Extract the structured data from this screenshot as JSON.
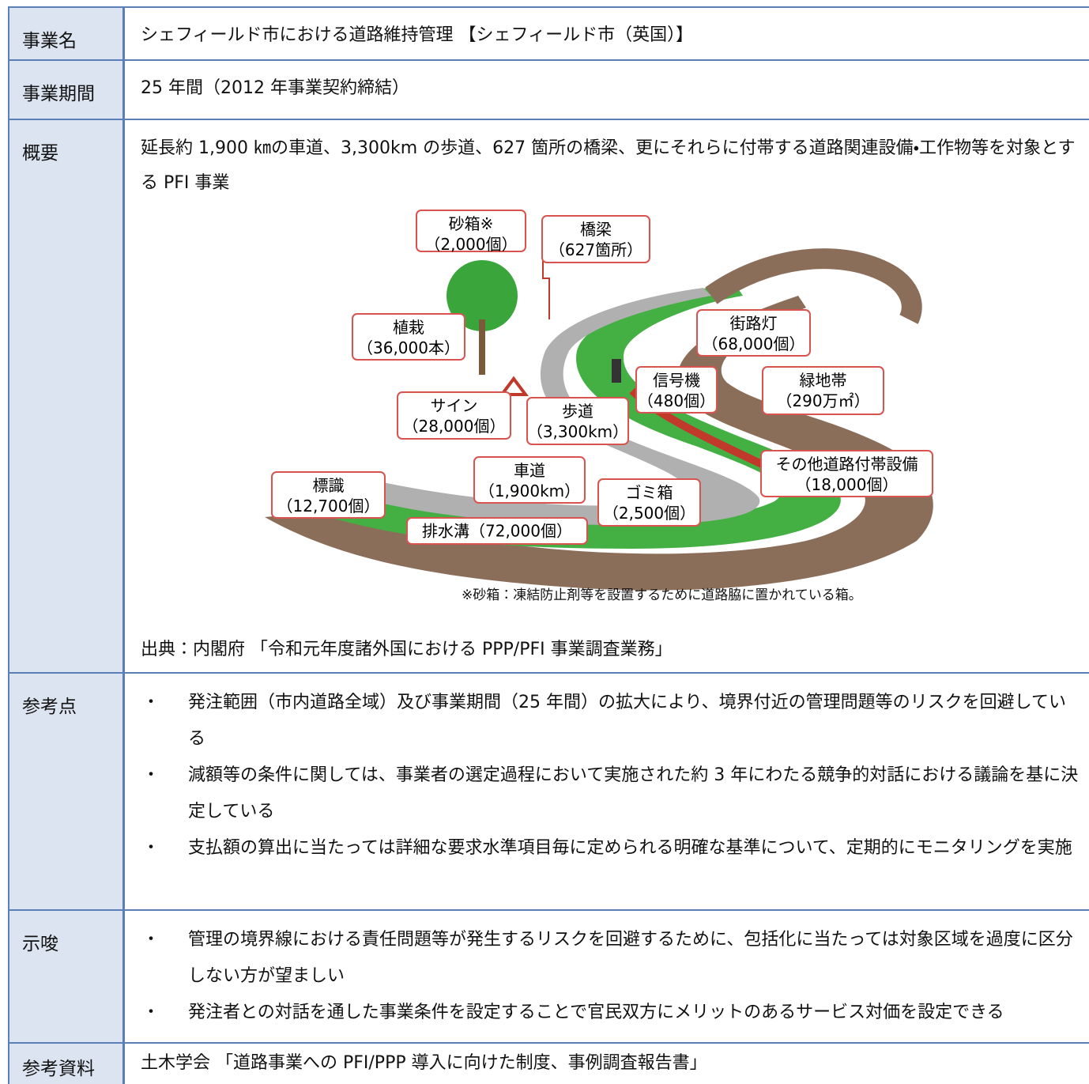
{
  "bullet": "・",
  "rows": [
    {
      "label": "事業名",
      "text": "シェフィールド市における道路維持管理 【シェフィールド市（英国）】"
    },
    {
      "label": "事業期間",
      "text": "25 年間（2012 年事業契約締結）"
    },
    {
      "label": "概要",
      "text": "延長約 1,900 ㎞の車道、3,300km の歩道、627 箇所の橋梁、更にそれらに付帯する道路関連設備・工作物等を対象とする PFI 事業",
      "figure": {
        "labels": [
          {
            "name": "砂箱※",
            "count": "（2,000個）"
          },
          {
            "name": "橋梁",
            "count": "（627箇所）"
          },
          {
            "name": "植栽",
            "count": "（36,000本）"
          },
          {
            "name": "街路灯",
            "count": "（68,000個）"
          },
          {
            "name": "信号機",
            "count": "（480個）"
          },
          {
            "name": "緑地帯",
            "count": "（290万㎡）"
          },
          {
            "name": "サイン",
            "count": "（28,000個）"
          },
          {
            "name": "歩道",
            "count": "（3,300km）"
          },
          {
            "name": "車道",
            "count": "（1,900km）"
          },
          {
            "name": "その他道路付帯設備",
            "count": "（18,000個）"
          },
          {
            "name": "標識",
            "count": "（12,700個）"
          },
          {
            "name": "ゴミ箱",
            "count": "（2,500個）"
          },
          {
            "name": "排水溝",
            "count": "（72,000個）"
          }
        ],
        "note": "※砂箱：凍結防止剤等を設置するために道路脇に置かれている箱。",
        "source": "出典：内閣府 「令和元年度諸外国における PPP/PFI 事業調査業務」"
      }
    },
    {
      "label": "参考点",
      "items": [
        "発注範囲（市内道路全域）及び事業期間（25 年間）の拡大により、境界付近の管理問題等のリスクを回避している",
        "減額等の条件に関しては、事業者の選定過程において実施された約 3 年にわたる競争的対話における議論を基に決定している",
        "支払額の算出に当たっては詳細な要求水準項目毎に定められる明確な基準について、定期的にモニタリングを実施"
      ]
    },
    {
      "label": "示唆",
      "items": [
        "管理の境界線における責任問題等が発生するリスクを回避するために、包括化に当たっては対象区域を過度に区分しない方が望ましい",
        "発注者との対話を通した事業条件を設定することで官民双方にメリットのあるサービス対価を設定できる"
      ]
    },
    {
      "label": "参考資料",
      "text": "土木学会 「道路事業への PFI/PPP 導入に向けた制度、事例調査報告書」"
    }
  ]
}
